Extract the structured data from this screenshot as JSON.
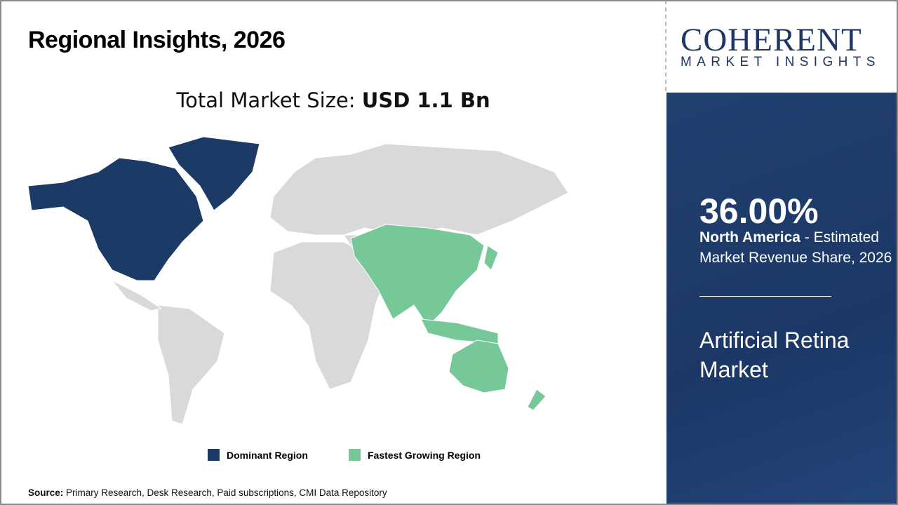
{
  "header": {
    "title": "Regional Insights, 2026",
    "market_size_label": "Total Market Size:",
    "market_size_value": "USD 1.1 Bn"
  },
  "logo": {
    "line1": "COHERENT",
    "line2": "MARKET INSIGHTS"
  },
  "panel": {
    "percentage": "36.00%",
    "region": "North America",
    "region_suffix": " - Estimated Market Revenue Share, 2026",
    "market_name": "Artificial Retina Market"
  },
  "legend": [
    {
      "label": "Dominant Region",
      "color": "#1b3a66"
    },
    {
      "label": "Fastest Growing Region",
      "color": "#77c898"
    }
  ],
  "map": {
    "dominant": "North America",
    "fastest_growing": "Asia Pacific",
    "colors": {
      "dominant": "#1b3a66",
      "fastest": "#77c898",
      "other": "#d9d9d9"
    }
  },
  "source": {
    "label": "Source:",
    "text": " Primary Research, Desk Research, Paid subscriptions, CMI Data Repository"
  }
}
